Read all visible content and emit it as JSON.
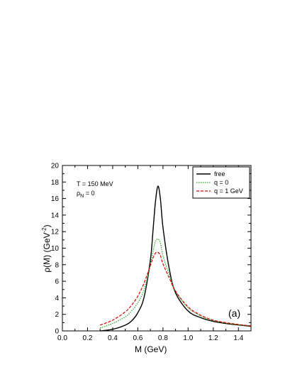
{
  "chart_data": {
    "type": "line",
    "xlabel": "M   (GeV)",
    "ylabel": "ρ(M)   (GeV",
    "ylabel_sup": "-2",
    "ylabel_close": ")",
    "xlim": [
      0.0,
      1.5
    ],
    "ylim": [
      0,
      20
    ],
    "x_ticks": [
      "0.0",
      "0.2",
      "0.4",
      "0.6",
      "0.8",
      "1.0",
      "1.2",
      "1.4"
    ],
    "y_ticks": [
      "0",
      "2",
      "4",
      "6",
      "8",
      "10",
      "12",
      "14",
      "16",
      "18",
      "20"
    ],
    "grid": false,
    "legend_position": "top-right",
    "annotation_line1": "T = 150 MeV",
    "annotation_line2_base": "ρ",
    "annotation_line2_sub": "N",
    "annotation_line2_rest": " = 0",
    "panel_label": "(a)",
    "series": [
      {
        "name": "free",
        "color": "#000000",
        "dash": "solid",
        "x": [
          0.3,
          0.4,
          0.5,
          0.55,
          0.6,
          0.65,
          0.7,
          0.72,
          0.74,
          0.76,
          0.78,
          0.8,
          0.85,
          0.9,
          1.0,
          1.1,
          1.2,
          1.3,
          1.4,
          1.5
        ],
        "y": [
          0.0,
          0.2,
          0.7,
          1.2,
          2.2,
          4.1,
          8.6,
          12.0,
          15.6,
          17.5,
          15.9,
          12.5,
          7.5,
          4.6,
          2.4,
          1.6,
          1.15,
          0.9,
          0.72,
          0.55
        ]
      },
      {
        "name": "q = 0",
        "color": "#22aa22",
        "dash": "dotted",
        "x": [
          0.3,
          0.4,
          0.5,
          0.55,
          0.6,
          0.65,
          0.7,
          0.72,
          0.74,
          0.76,
          0.78,
          0.8,
          0.85,
          0.9,
          1.0,
          1.1,
          1.2,
          1.3,
          1.4,
          1.5
        ],
        "y": [
          0.35,
          0.9,
          1.7,
          2.4,
          3.4,
          5.0,
          8.0,
          9.6,
          10.8,
          11.1,
          10.6,
          9.1,
          6.8,
          4.8,
          2.8,
          1.8,
          1.25,
          0.95,
          0.75,
          0.6
        ]
      },
      {
        "name": "q = 1 GeV",
        "color": "#dd0000",
        "dash": "dashed",
        "x": [
          0.3,
          0.4,
          0.5,
          0.55,
          0.6,
          0.65,
          0.7,
          0.72,
          0.74,
          0.76,
          0.78,
          0.8,
          0.85,
          0.9,
          1.0,
          1.1,
          1.2,
          1.3,
          1.4,
          1.5
        ],
        "y": [
          0.7,
          1.3,
          2.3,
          3.1,
          4.2,
          5.8,
          7.9,
          8.8,
          9.4,
          9.5,
          9.1,
          8.1,
          6.4,
          4.8,
          2.9,
          1.9,
          1.3,
          1.0,
          0.78,
          0.6
        ]
      }
    ]
  }
}
